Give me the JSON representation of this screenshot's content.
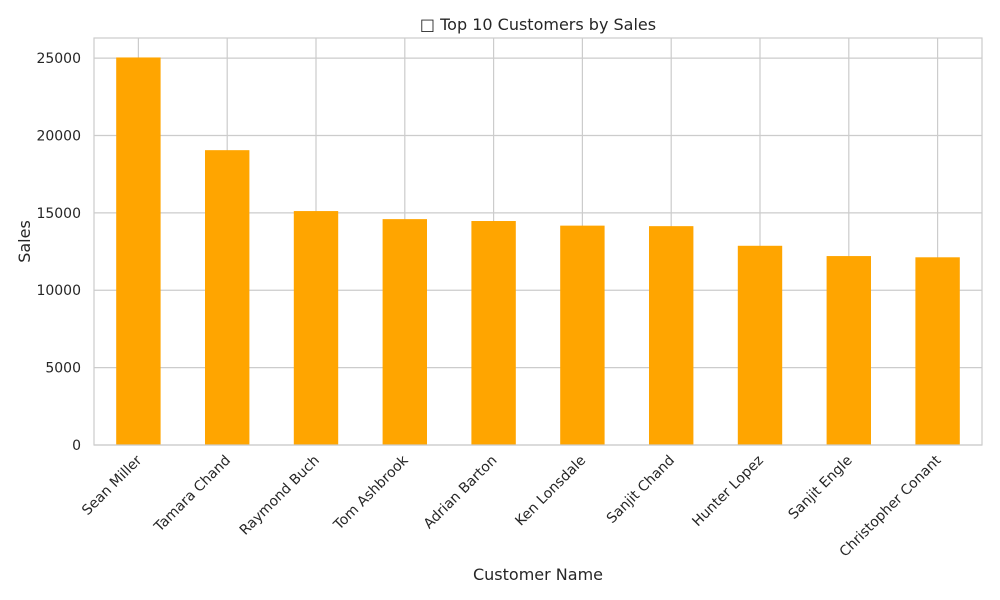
{
  "chart_data": {
    "type": "bar",
    "title": "□ Top 10 Customers by Sales",
    "xlabel": "Customer Name",
    "ylabel": "Sales",
    "categories": [
      "Sean Miller",
      "Tamara Chand",
      "Raymond Buch",
      "Tom Ashbrook",
      "Adrian Barton",
      "Ken Lonsdale",
      "Sanjit Chand",
      "Hunter Lopez",
      "Sanjit Engle",
      "Christopher Conant"
    ],
    "values": [
      25043,
      19052,
      15117,
      14596,
      14474,
      14175,
      14142,
      12873,
      12209,
      12129
    ],
    "ylim": [
      0,
      26300
    ],
    "yticks": [
      0,
      5000,
      10000,
      15000,
      20000,
      25000
    ],
    "grid": true,
    "bar_color": "#FFA500",
    "grid_color": "#cccccc",
    "text_color": "#262626"
  }
}
